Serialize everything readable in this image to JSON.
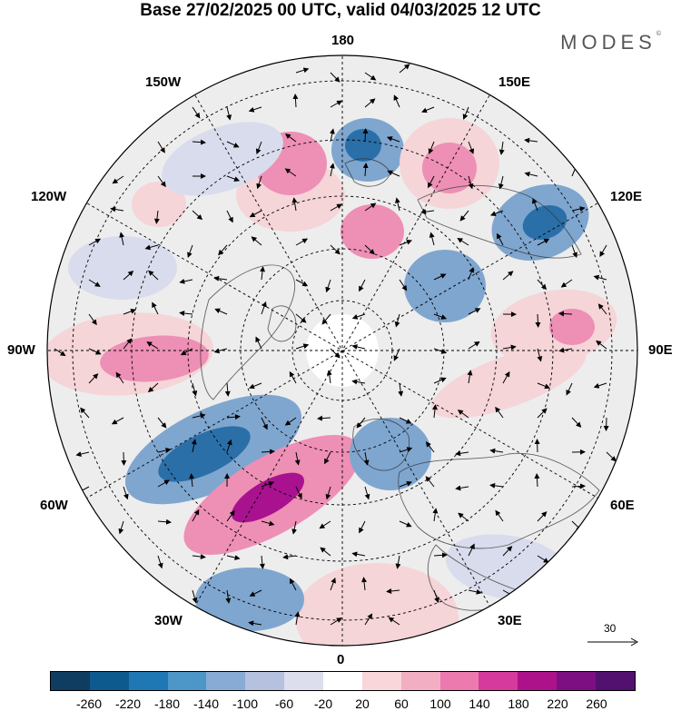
{
  "header": {
    "title": "Base 27/02/2025 00 UTC, valid 04/03/2025 12 UTC",
    "brand": "MODES",
    "brand_mark": "©"
  },
  "map": {
    "projection": "north-polar-stereographic",
    "longitude_labels": {
      "top": "180",
      "bottom": "0",
      "left": "90W",
      "right": "90E",
      "upper_left": "150W",
      "upper_right": "150E",
      "mid_upper_left": "120W",
      "mid_upper_right": "120E",
      "mid_lower_left": "60W",
      "mid_lower_right": "60E",
      "lower_left": "30W",
      "lower_right": "30E"
    },
    "reference_vector": {
      "label": "30"
    },
    "field_colors": {
      "negative_strong": "#2a6fa8",
      "negative_mid": "#7fa6cf",
      "negative_weak": "#d9dcec",
      "neutral": "#ededed",
      "positive_weak": "#f5d5d8",
      "positive_mid": "#ee8fb5",
      "positive_strong": "#a8128f"
    }
  },
  "colorbar": {
    "ticks": [
      "-260",
      "-220",
      "-180",
      "-140",
      "-100",
      "-60",
      "-20",
      "20",
      "60",
      "100",
      "140",
      "180",
      "220",
      "260"
    ],
    "colors": [
      "#0f3d62",
      "#0d5a8f",
      "#1f78b4",
      "#4d96c8",
      "#88abd5",
      "#b6c1df",
      "#dcdded",
      "#ffffff",
      "#f8d6d9",
      "#f2afc3",
      "#ec7aae",
      "#d63a9c",
      "#ad128a",
      "#7d0f83",
      "#52106f"
    ]
  }
}
